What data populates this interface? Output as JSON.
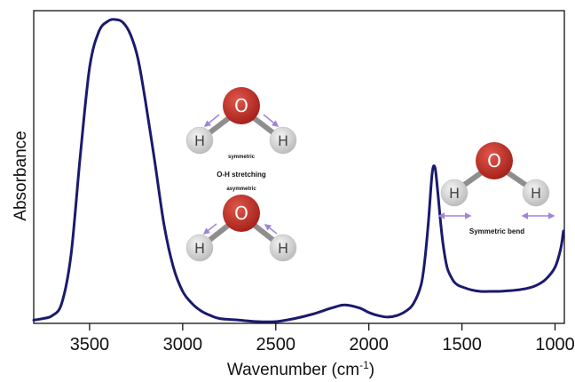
{
  "chart_data": {
    "type": "line",
    "title": "",
    "xlabel": "Wavenumber (cm-1)",
    "xlabel_parts": {
      "main": "Wavenumber (cm",
      "sup": "-1",
      "close": ")"
    },
    "ylabel": "Absorbance",
    "xlim": [
      3800,
      950
    ],
    "x_reversed": true,
    "ylim": [
      0,
      1
    ],
    "y_tick_labels": false,
    "grid": false,
    "legend": "none",
    "x_ticks": [
      3500,
      3000,
      2500,
      2000,
      1500,
      1000
    ],
    "x_tick_labels": [
      "3500",
      "3000",
      "2500",
      "2000",
      "1500",
      "1000"
    ],
    "series": [
      {
        "color": "#1a1a6e",
        "x": [
          3800,
          3750,
          3700,
          3650,
          3600,
          3550,
          3500,
          3450,
          3400,
          3360,
          3320,
          3280,
          3240,
          3200,
          3150,
          3100,
          3050,
          3000,
          2950,
          2900,
          2850,
          2800,
          2700,
          2600,
          2500,
          2400,
          2300,
          2200,
          2130,
          2050,
          2000,
          1950,
          1900,
          1850,
          1800,
          1760,
          1720,
          1700,
          1680,
          1660,
          1645,
          1630,
          1615,
          1600,
          1580,
          1560,
          1540,
          1520,
          1500,
          1450,
          1400,
          1350,
          1300,
          1250,
          1200,
          1150,
          1100,
          1050,
          1000,
          970,
          955
        ],
        "y": [
          0.005,
          0.01,
          0.02,
          0.06,
          0.22,
          0.55,
          0.84,
          0.96,
          0.995,
          1.0,
          0.99,
          0.95,
          0.87,
          0.73,
          0.53,
          0.32,
          0.18,
          0.1,
          0.06,
          0.035,
          0.02,
          0.01,
          0.005,
          0.0,
          0.0,
          0.01,
          0.025,
          0.045,
          0.055,
          0.045,
          0.03,
          0.02,
          0.015,
          0.02,
          0.035,
          0.06,
          0.12,
          0.2,
          0.33,
          0.49,
          0.51,
          0.43,
          0.33,
          0.25,
          0.18,
          0.15,
          0.13,
          0.12,
          0.115,
          0.105,
          0.1,
          0.1,
          0.1,
          0.102,
          0.105,
          0.11,
          0.12,
          0.14,
          0.18,
          0.24,
          0.3
        ]
      }
    ],
    "annotations": {
      "symmetric": "symmetric",
      "oh_stretching": "O-H stretching",
      "asymmetric": "asymmetric",
      "symmetric_bend": "Symmetric bend"
    },
    "atoms": {
      "oxygen": "O",
      "hydrogen": "H"
    },
    "colors": {
      "line": "#1a1a6e",
      "oxygen": "#c8322a",
      "hydrogen": "#d8d8d8",
      "bond": "#8e8e8e",
      "arrow": "#a084d6"
    }
  }
}
